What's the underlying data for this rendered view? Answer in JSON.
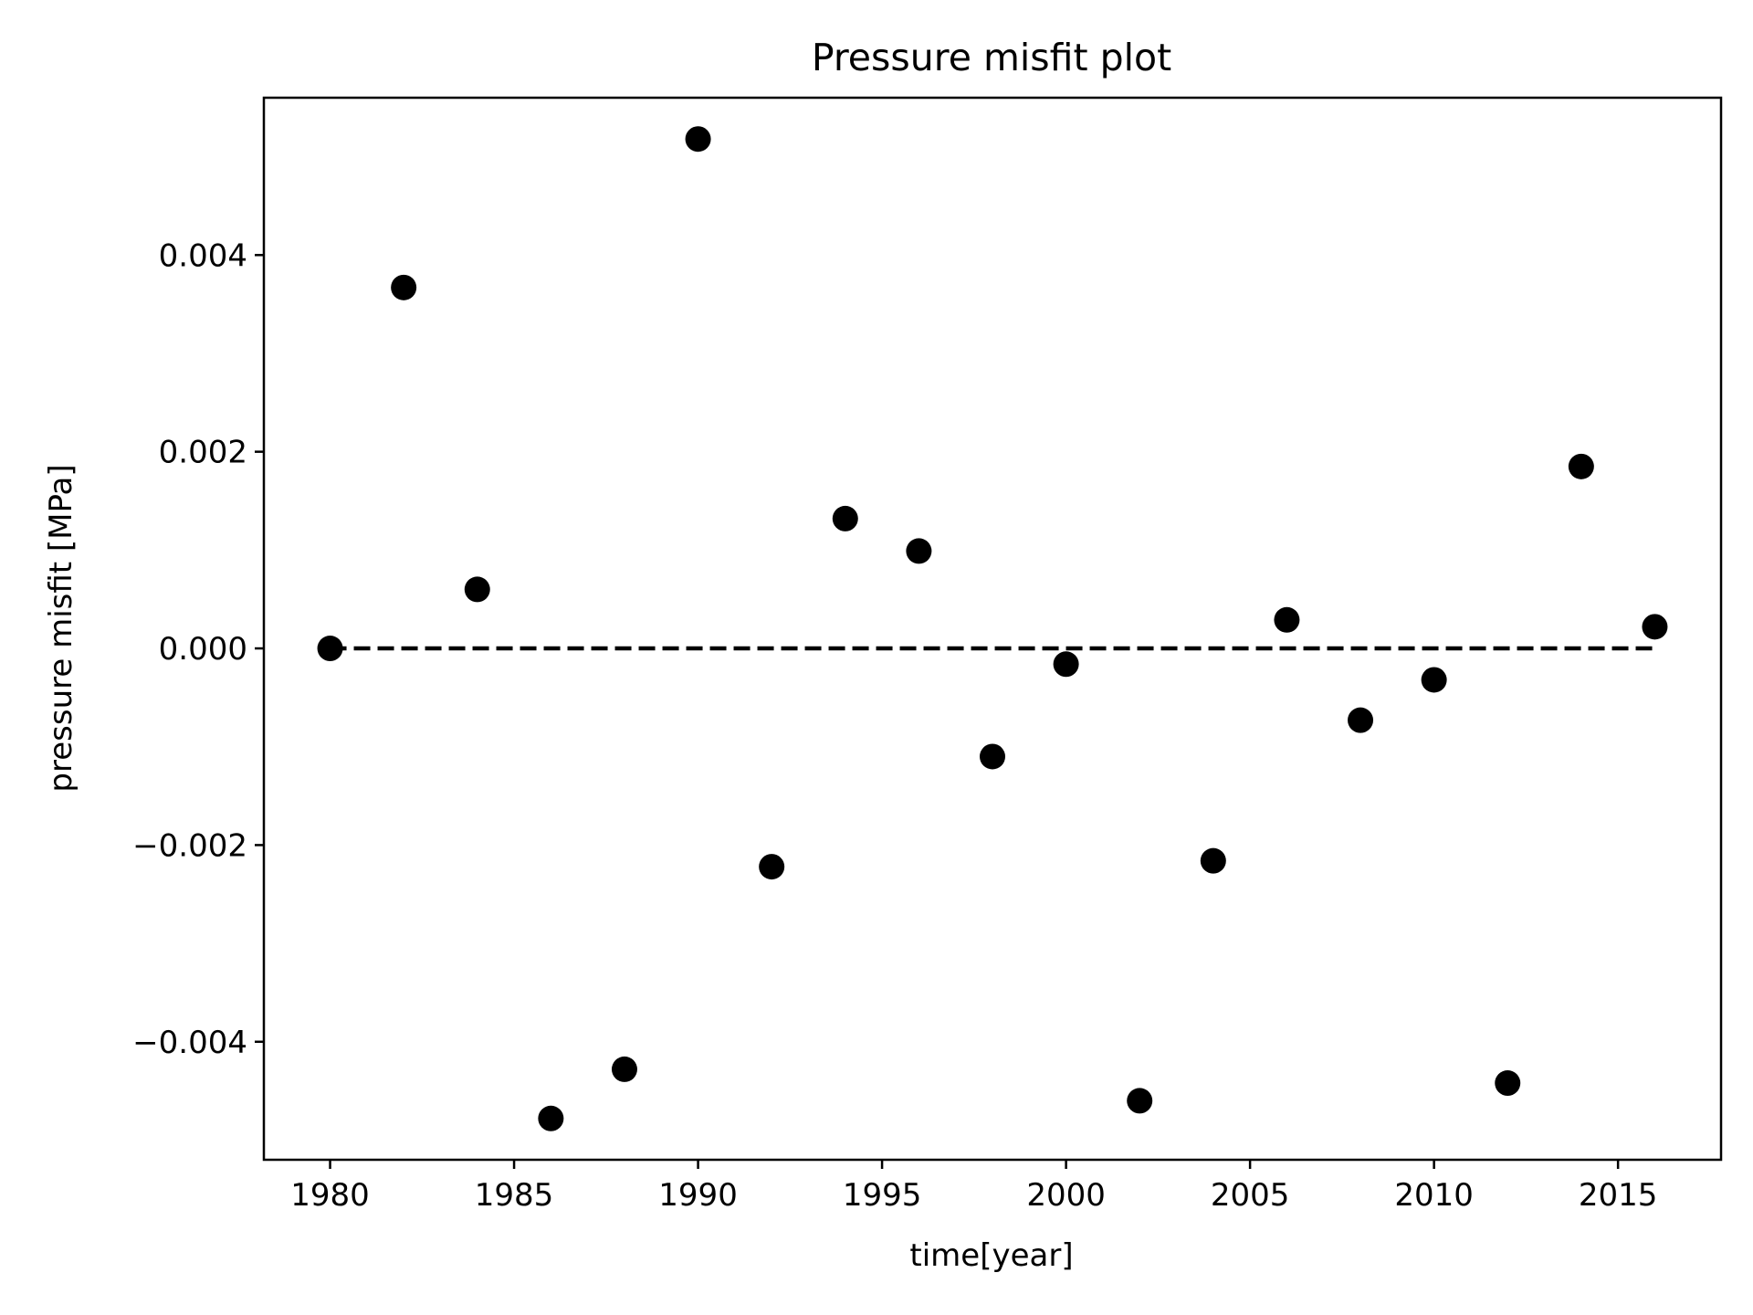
{
  "chart_data": {
    "type": "scatter",
    "title": "Pressure misfit plot",
    "xlabel": "time[year]",
    "ylabel": "pressure misfit [MPa]",
    "xlim": [
      1978.2,
      2017.8
    ],
    "ylim": [
      -0.0052,
      0.0056
    ],
    "xticks": [
      1980,
      1985,
      1990,
      1995,
      2000,
      2005,
      2010,
      2015
    ],
    "xtick_labels": [
      "1980",
      "1985",
      "1990",
      "1995",
      "2000",
      "2005",
      "2010",
      "2015"
    ],
    "yticks": [
      -0.004,
      -0.002,
      0,
      0.002,
      0.004
    ],
    "ytick_labels": [
      "−0.004",
      "−0.002",
      "0.000",
      "0.002",
      "0.004"
    ],
    "grid": false,
    "series": [
      {
        "marker": "circle",
        "color": "#000000",
        "x": [
          1980,
          1982,
          1984,
          1986,
          1988,
          1990,
          1992,
          1994,
          1996,
          1998,
          2000,
          2002,
          2004,
          2006,
          2008,
          2010,
          2012,
          2014,
          2016
        ],
        "y": [
          0.0,
          0.00367,
          0.0006,
          -0.00478,
          -0.00428,
          0.00518,
          -0.00222,
          0.00132,
          0.00099,
          -0.0011,
          -0.00016,
          -0.0046,
          -0.00216,
          0.00029,
          -0.00073,
          -0.00032,
          -0.00442,
          0.00185,
          0.00022
        ]
      }
    ],
    "reference_line": {
      "style": "dashed",
      "color": "#000000",
      "x": [
        1980,
        2016
      ],
      "y": [
        0,
        0
      ]
    }
  }
}
